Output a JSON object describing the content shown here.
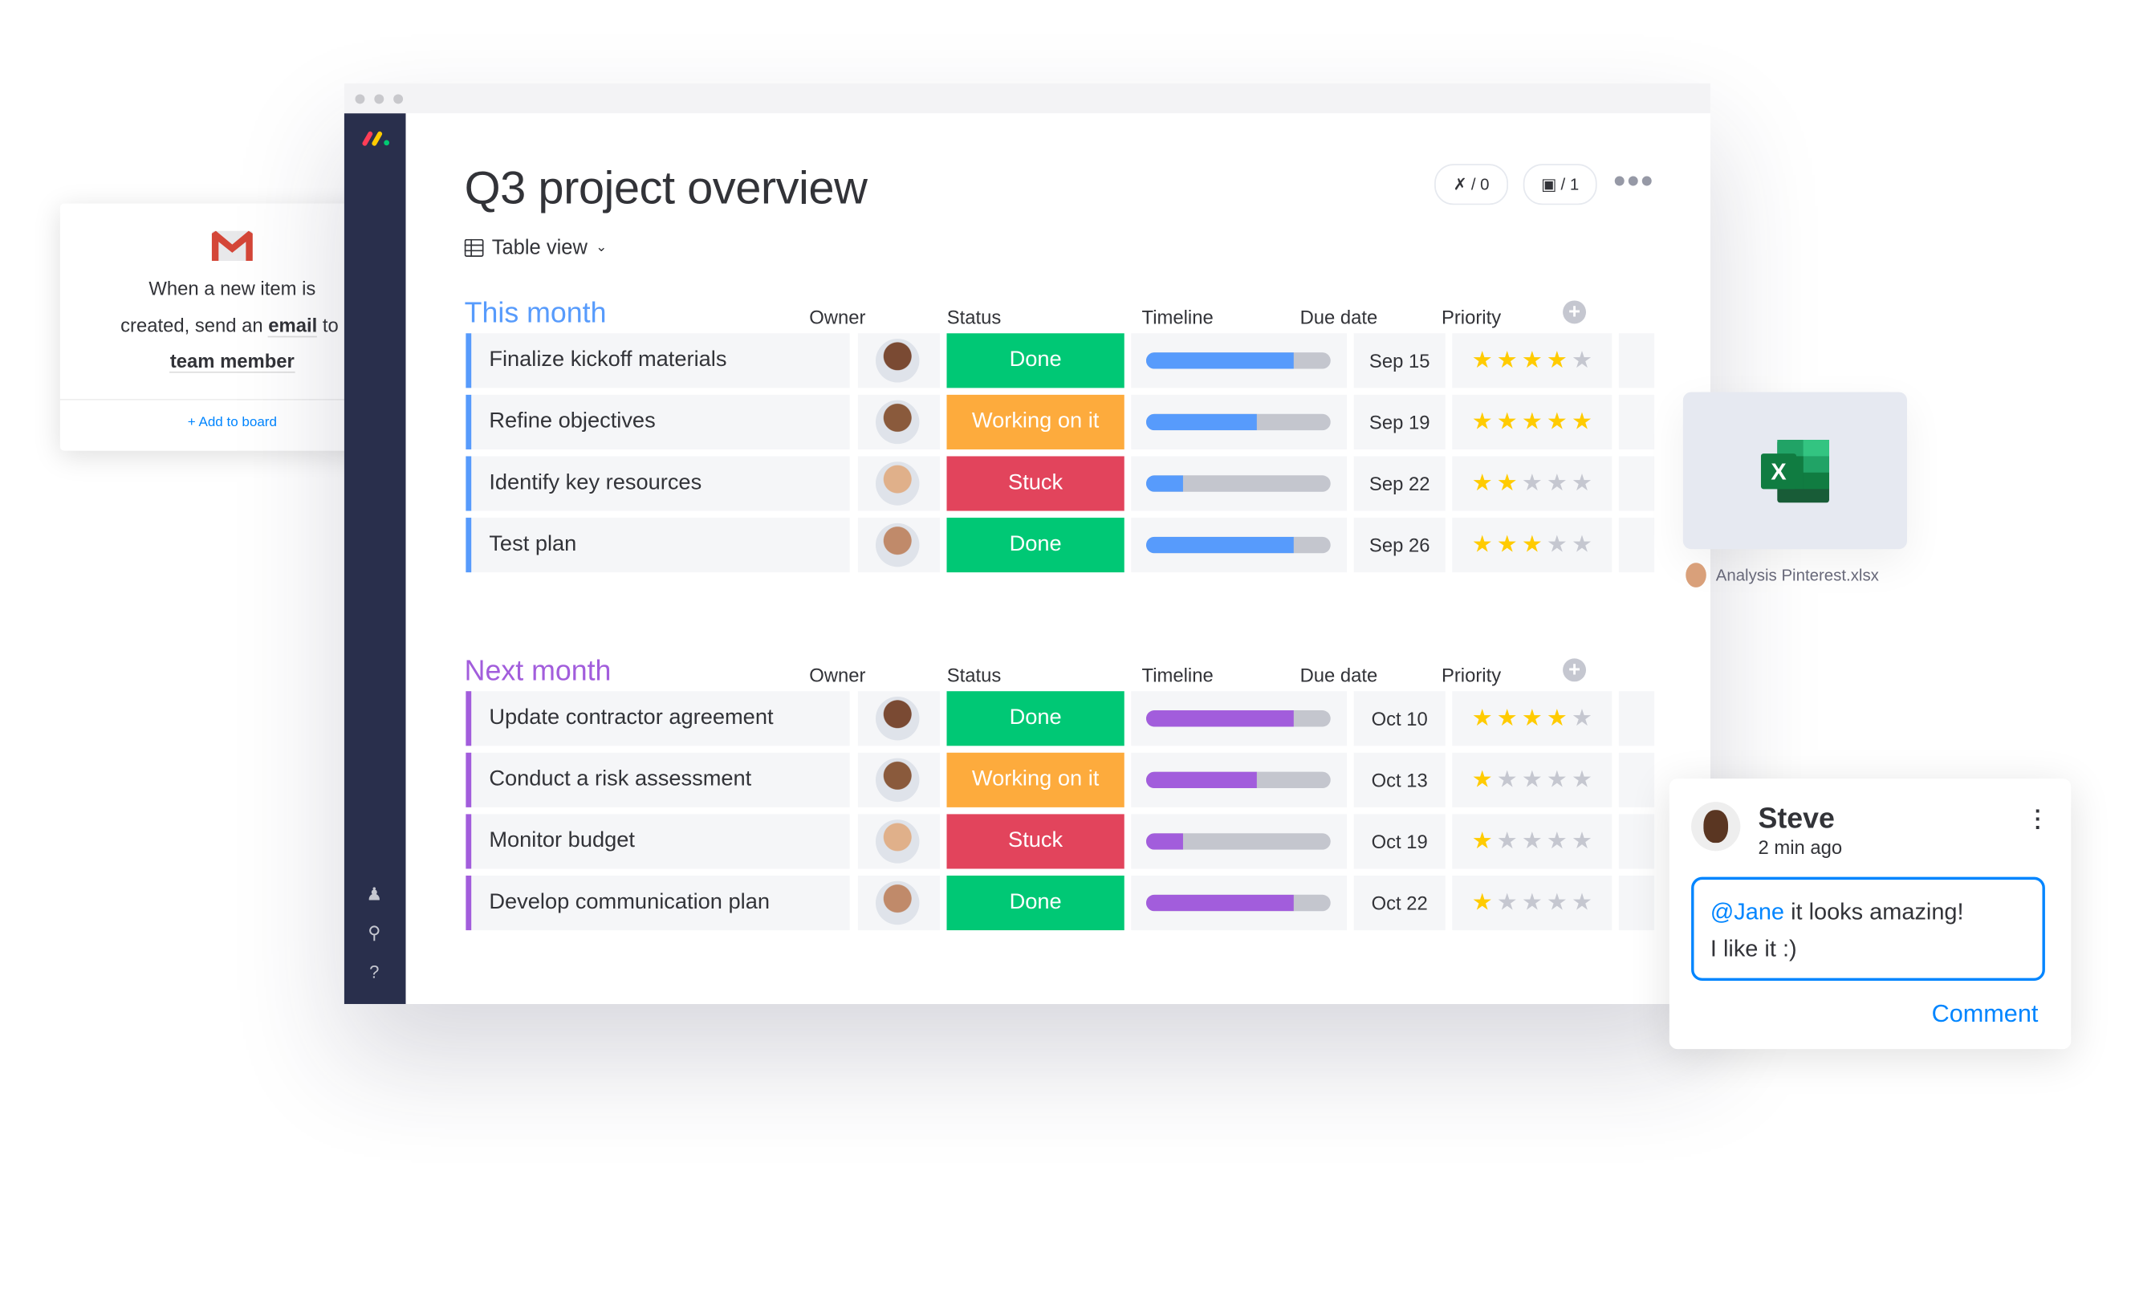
{
  "colors": {
    "blue": "#579bfc",
    "purple": "#a25ddc",
    "done": "#00c875",
    "working": "#fdab3d",
    "stuck": "#e2445c",
    "star_on": "#ffcb00",
    "star_off": "#c5c7d0",
    "sidebar": "#292f4c",
    "link": "#0085ff"
  },
  "board": {
    "title": "Q3 project overview",
    "view_label": "Table view",
    "integrations_badge": "/ 0",
    "automations_badge": "/ 1",
    "icons": {
      "integrations": "plug-icon",
      "automations": "robot-icon",
      "more": "more-dots-icon",
      "view": "table-icon"
    }
  },
  "sidebar": {
    "icons": [
      "invite-user-icon",
      "search-icon",
      "help-icon"
    ]
  },
  "columns": {
    "owner": "Owner",
    "status": "Status",
    "timeline": "Timeline",
    "due": "Due date",
    "priority": "Priority"
  },
  "groups": [
    {
      "title": "This month",
      "color": "#579bfc",
      "items": [
        {
          "name": "Finalize kickoff materials",
          "status": "Done",
          "status_color": "#00c875",
          "timeline_progress": 0.8,
          "due": "Sep 15",
          "priority": 4
        },
        {
          "name": "Refine objectives",
          "status": "Working on it",
          "status_color": "#fdab3d",
          "timeline_progress": 0.6,
          "due": "Sep 19",
          "priority": 5
        },
        {
          "name": "Identify key resources",
          "status": "Stuck",
          "status_color": "#e2445c",
          "timeline_progress": 0.2,
          "due": "Sep 22",
          "priority": 2
        },
        {
          "name": "Test plan",
          "status": "Done",
          "status_color": "#00c875",
          "timeline_progress": 0.8,
          "due": "Sep 26",
          "priority": 3
        }
      ]
    },
    {
      "title": "Next month",
      "color": "#a25ddc",
      "items": [
        {
          "name": "Update contractor agreement",
          "status": "Done",
          "status_color": "#00c875",
          "timeline_progress": 0.8,
          "due": "Oct 10",
          "priority": 4
        },
        {
          "name": "Conduct a risk assessment",
          "status": "Working on it",
          "status_color": "#fdab3d",
          "timeline_progress": 0.6,
          "due": "Oct 13",
          "priority": 1
        },
        {
          "name": "Monitor budget",
          "status": "Stuck",
          "status_color": "#e2445c",
          "timeline_progress": 0.2,
          "due": "Oct 19",
          "priority": 1
        },
        {
          "name": "Develop communication plan",
          "status": "Done",
          "status_color": "#00c875",
          "timeline_progress": 0.8,
          "due": "Oct 22",
          "priority": 1
        }
      ]
    }
  ],
  "automation_card": {
    "line1": "When a new item is",
    "line2_pre": "created, send an ",
    "line2_bold": "email",
    "line2_post": " to",
    "line3": "team member",
    "add_link": "+ Add to board",
    "icon": "gmail-icon"
  },
  "file_card": {
    "filename": "Analysis Pinterest.xlsx",
    "icon": "excel-icon"
  },
  "comment_card": {
    "author": "Steve",
    "time": "2 min ago",
    "mention": "@Jane",
    "text1": " it looks amazing!",
    "text2": "I like it :)",
    "action": "Comment"
  }
}
